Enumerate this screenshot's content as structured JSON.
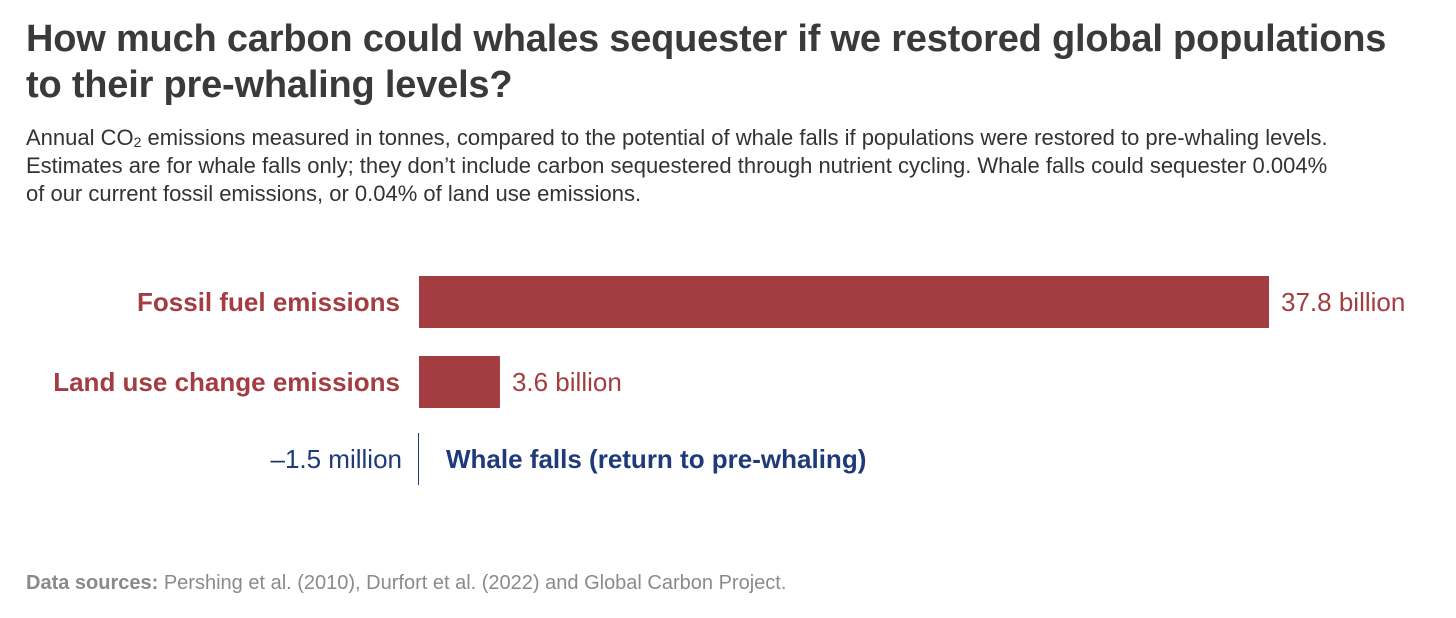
{
  "chart_data": {
    "type": "bar",
    "orientation": "horizontal",
    "title": "How much carbon could whales sequester if we restored global populations to their pre-whaling levels?",
    "subtitle_before_sub": "Annual CO",
    "subtitle_sub": "2",
    "subtitle_after_sub": " emissions measured in tonnes, compared to the potential of whale falls if populations were restored to pre-whaling levels. Estimates are for whale falls only; they don’t include carbon sequestered through nutrient cycling. Whale falls could sequester 0.004% of our current fossil emissions, or 0.04% of land use emissions.",
    "categories": [
      "Fossil fuel emissions",
      "Land use change emissions",
      "Whale falls (return to pre-whaling)"
    ],
    "values": [
      37800000000,
      3600000000,
      -1500000
    ],
    "value_labels": [
      "37.8 billion",
      "3.6 billion",
      "–1.5 million"
    ],
    "colors": [
      "#a33d41",
      "#a33d41",
      "#1f3a7a"
    ],
    "xlim": [
      0,
      37800000000
    ],
    "grid": false,
    "legend": "none",
    "source_label": "Data sources:",
    "source_text": " Pershing et al. (2010), Durfort et al. (2022) and Global Carbon Project."
  }
}
